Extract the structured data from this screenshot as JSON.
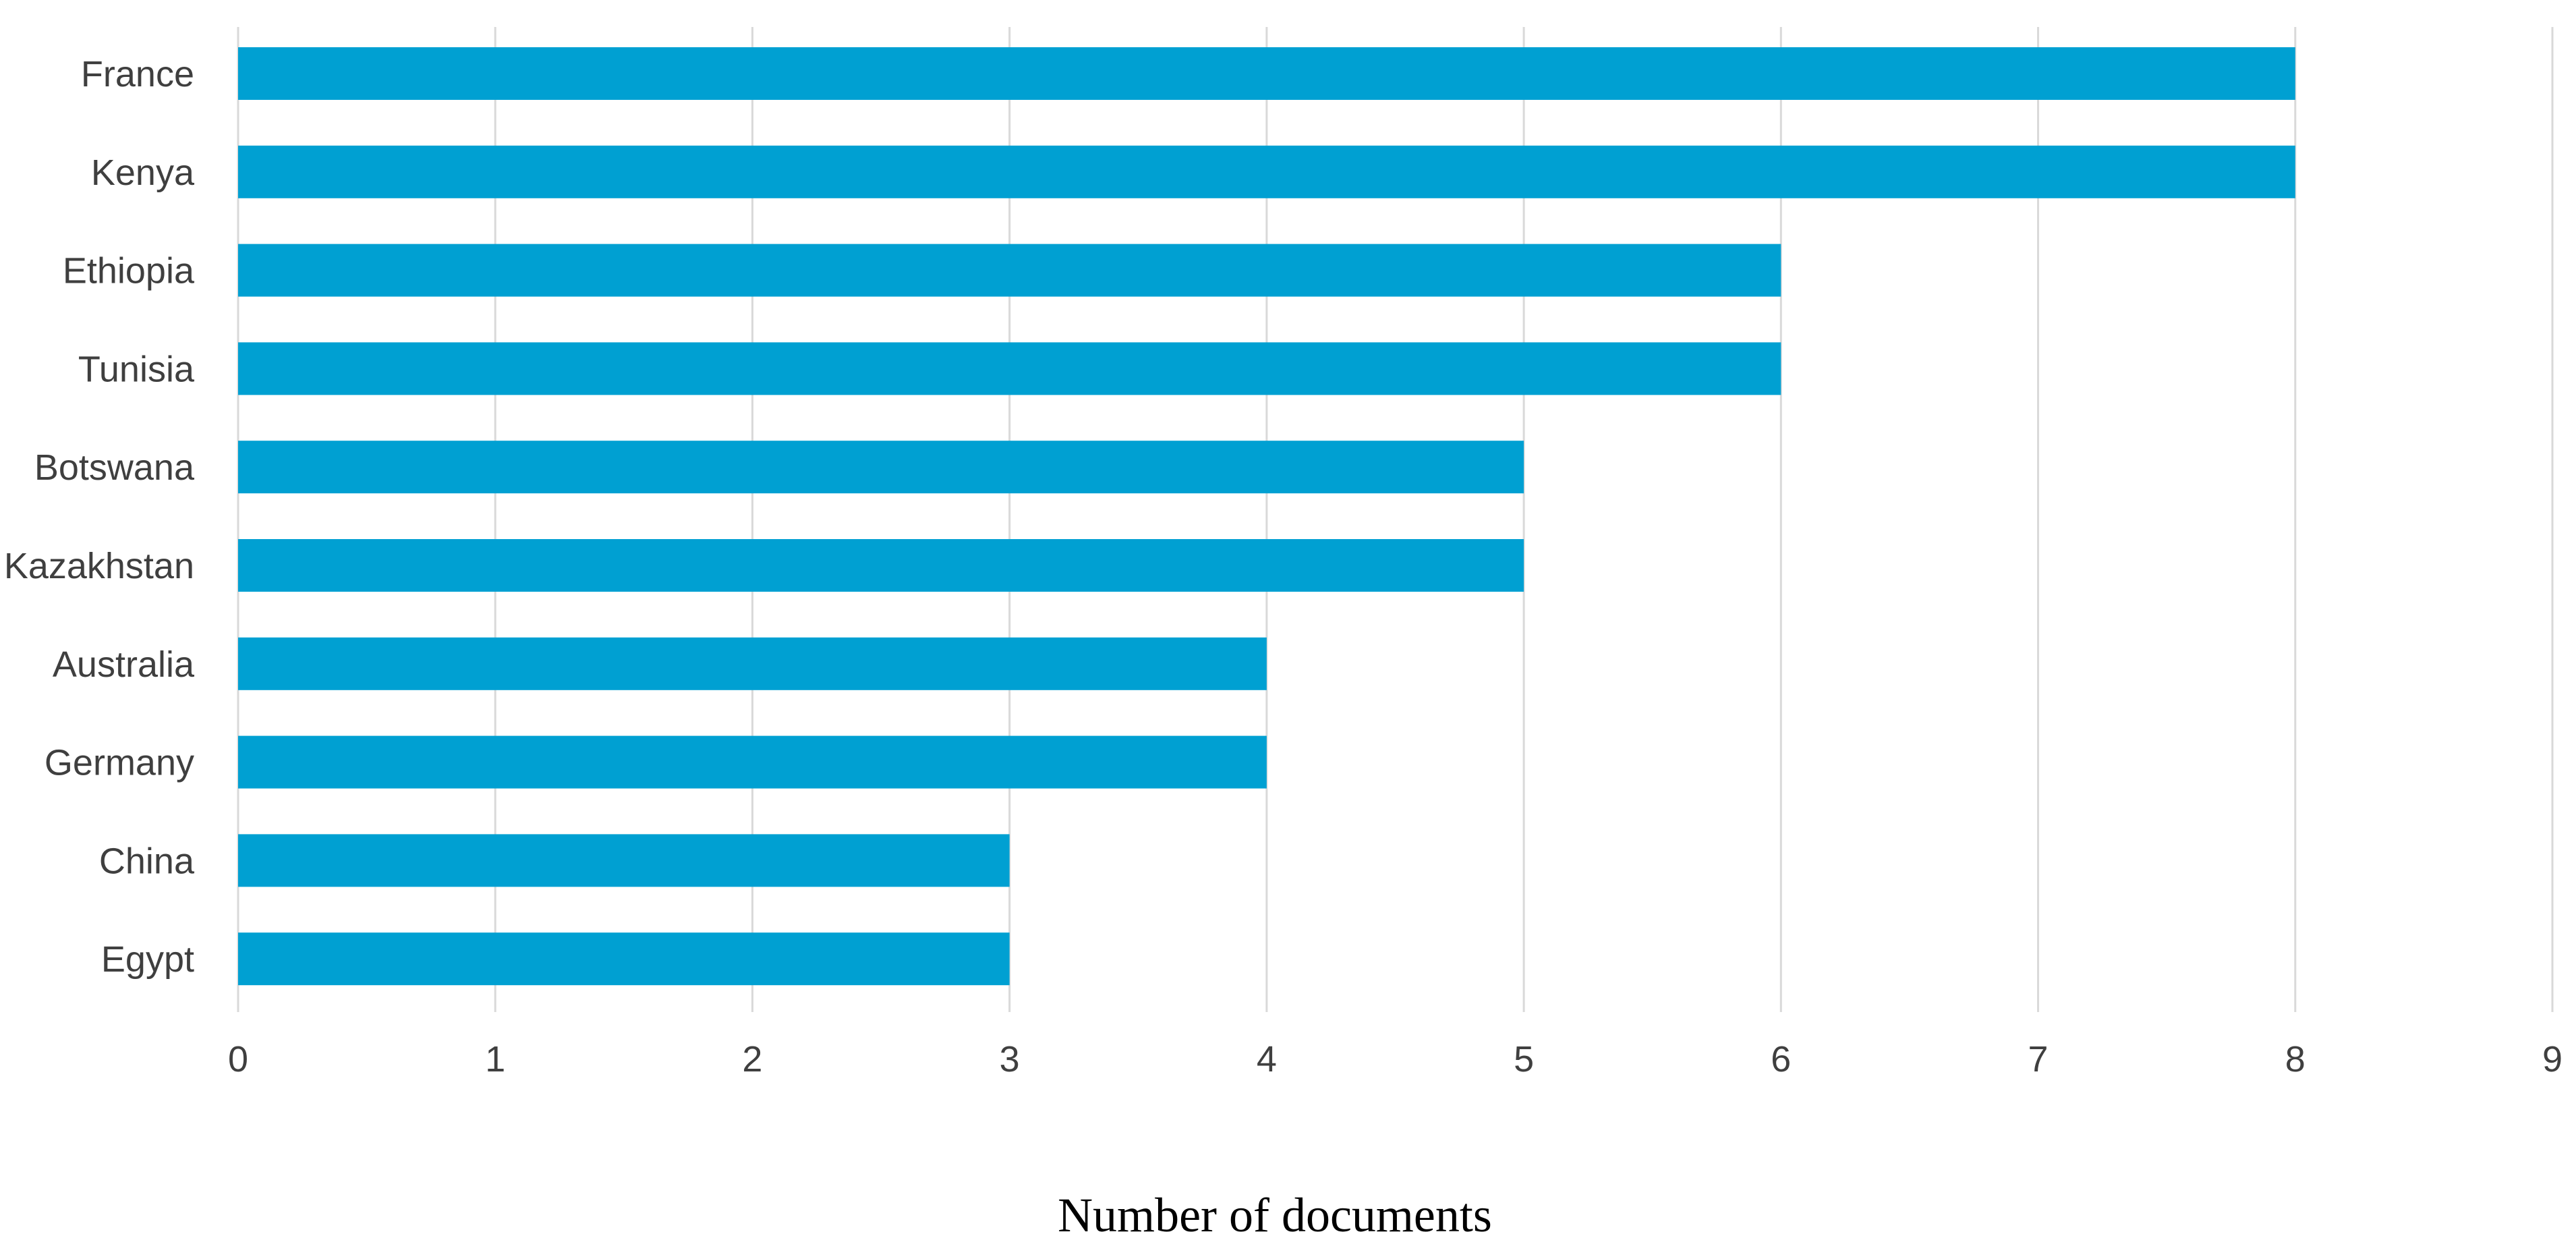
{
  "chart_data": {
    "type": "bar",
    "orientation": "horizontal",
    "categories": [
      "France",
      "Kenya",
      "Ethiopia",
      "Tunisia",
      "Botswana",
      "Kazakhstan",
      "Australia",
      "Germany",
      "China",
      "Egypt"
    ],
    "values": [
      8,
      8,
      6,
      6,
      5,
      5,
      4,
      4,
      3,
      3
    ],
    "title": "",
    "xlabel": "Number of documents",
    "ylabel": "",
    "xlim": [
      0,
      9
    ],
    "xticks": [
      "0",
      "1",
      "2",
      "3",
      "4",
      "5",
      "6",
      "7",
      "8",
      "9"
    ],
    "grid": "vertical",
    "legend": "none",
    "bar_color": "#00a0d2",
    "grid_color": "#d9d9d9"
  }
}
